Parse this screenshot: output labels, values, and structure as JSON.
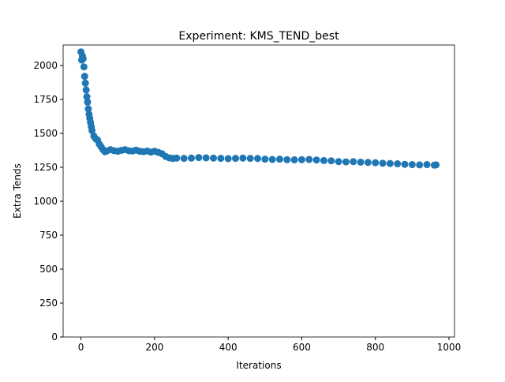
{
  "chart_data": {
    "type": "scatter",
    "title": "Experiment: KMS_TEND_best",
    "x_label": "Iterations",
    "y_label": "Extra Tends",
    "color": "#1f77b4",
    "x": [
      0,
      2,
      4,
      6,
      8,
      10,
      12,
      14,
      16,
      18,
      20,
      22,
      24,
      26,
      28,
      30,
      35,
      40,
      45,
      50,
      55,
      60,
      65,
      70,
      80,
      90,
      100,
      110,
      120,
      130,
      140,
      150,
      160,
      170,
      180,
      190,
      200,
      210,
      220,
      230,
      240,
      250,
      260,
      280,
      300,
      320,
      340,
      360,
      380,
      400,
      420,
      440,
      460,
      480,
      500,
      520,
      540,
      560,
      580,
      600,
      620,
      640,
      660,
      680,
      700,
      720,
      740,
      760,
      780,
      800,
      820,
      840,
      860,
      880,
      900,
      920,
      940,
      960,
      965
    ],
    "values": [
      2100,
      2040,
      2070,
      2050,
      1990,
      1920,
      1870,
      1820,
      1770,
      1730,
      1680,
      1640,
      1610,
      1580,
      1550,
      1520,
      1480,
      1460,
      1450,
      1420,
      1400,
      1380,
      1365,
      1370,
      1380,
      1372,
      1368,
      1375,
      1380,
      1372,
      1370,
      1376,
      1368,
      1365,
      1370,
      1362,
      1368,
      1360,
      1350,
      1330,
      1320,
      1315,
      1318,
      1316,
      1318,
      1322,
      1320,
      1318,
      1316,
      1314,
      1316,
      1318,
      1316,
      1315,
      1310,
      1308,
      1310,
      1306,
      1305,
      1306,
      1308,
      1304,
      1300,
      1298,
      1292,
      1290,
      1292,
      1288,
      1286,
      1284,
      1280,
      1278,
      1276,
      1272,
      1270,
      1268,
      1270,
      1266,
      1268
    ],
    "xlim": [
      -48.5,
      1015
    ],
    "ylim": [
      0,
      2151
    ],
    "xticks": [
      0,
      200,
      400,
      600,
      800,
      1000
    ],
    "yticks": [
      0,
      250,
      500,
      750,
      1000,
      1250,
      1500,
      1750,
      2000
    ]
  }
}
